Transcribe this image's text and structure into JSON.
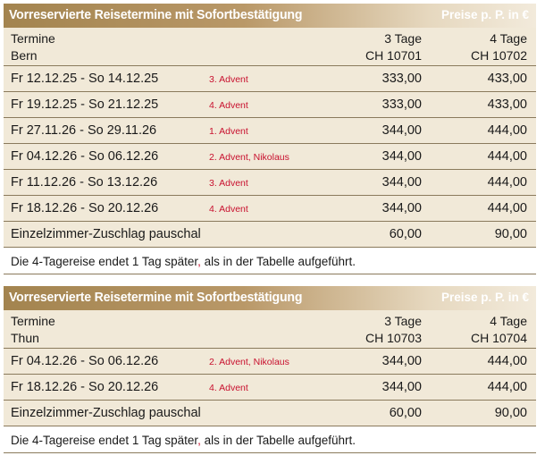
{
  "tables": [
    {
      "title": "Vorreservierte Reisetermine mit Sofortbestätigung",
      "price_label": "Preise p. P. in €",
      "col_label": "Termine",
      "location": "Bern",
      "col3_head": "3 Tage",
      "col3_code": "CH 10701",
      "col4_head": "4 Tage",
      "col4_code": "CH 10702",
      "rows": [
        {
          "date": "Fr   12.12.25 - So  14.12.25",
          "note": "3. Advent",
          "p3": "333,00",
          "p4": "433,00"
        },
        {
          "date": "Fr   19.12.25 - So  21.12.25",
          "note": "4. Advent",
          "p3": "333,00",
          "p4": "433,00"
        },
        {
          "date": "Fr   27.11.26 - So  29.11.26",
          "note": "1. Advent",
          "p3": "344,00",
          "p4": "444,00"
        },
        {
          "date": "Fr   04.12.26 - So  06.12.26",
          "note": "2. Advent, Nikolaus",
          "p3": "344,00",
          "p4": "444,00"
        },
        {
          "date": "Fr   11.12.26 - So  13.12.26",
          "note": "3. Advent",
          "p3": "344,00",
          "p4": "444,00"
        },
        {
          "date": "Fr   18.12.26 - So  20.12.26",
          "note": "4. Advent",
          "p3": "344,00",
          "p4": "444,00"
        }
      ],
      "surcharge_label": "Einzelzimmer-Zuschlag pauschal",
      "surcharge3": "60,00",
      "surcharge4": "90,00",
      "footnote_a": "Die 4-Tagereise endet 1 Tag später",
      "footnote_comma": ",",
      "footnote_b": " als in der Tabelle aufgeführt."
    },
    {
      "title": "Vorreservierte Reisetermine mit Sofortbestätigung",
      "price_label": "Preise p. P. in €",
      "col_label": "Termine",
      "location": "Thun",
      "col3_head": "3 Tage",
      "col3_code": "CH 10703",
      "col4_head": "4 Tage",
      "col4_code": "CH 10704",
      "rows": [
        {
          "date": "Fr   04.12.26 - So  06.12.26",
          "note": "2. Advent, Nikolaus",
          "p3": "344,00",
          "p4": "444,00"
        },
        {
          "date": "Fr   18.12.26 - So  20.12.26",
          "note": "4. Advent",
          "p3": "344,00",
          "p4": "444,00"
        }
      ],
      "surcharge_label": "Einzelzimmer-Zuschlag pauschal",
      "surcharge3": "60,00",
      "surcharge4": "90,00",
      "footnote_a": "Die 4-Tagereise endet 1 Tag später",
      "footnote_comma": ",",
      "footnote_b": " als in der Tabelle aufgeführt."
    }
  ]
}
